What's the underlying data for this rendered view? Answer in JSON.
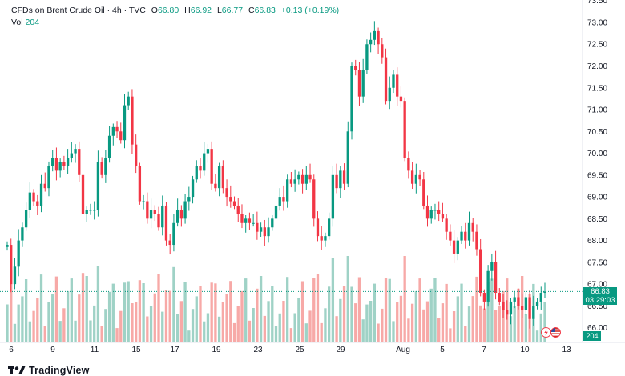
{
  "legend": {
    "title": "CFDs on Brent Crude Oil · 4h · TVC",
    "open_label": "O",
    "open": "66.80",
    "high_label": "H",
    "high": "66.92",
    "low_label": "L",
    "low": "66.77",
    "close_label": "C",
    "close": "66.83",
    "change": "+0.13 (+0.19%)",
    "vol_label": "Vol",
    "vol": "204"
  },
  "last_price": {
    "value": "66.83",
    "countdown": "03:29:03",
    "volume": "204"
  },
  "logo_text": "TradingView",
  "colors": {
    "up": "#089981",
    "down": "#F23645",
    "up_vol": "#9fd2c6",
    "down_vol": "#f7a9a7",
    "grid": "#f0f3fa",
    "axis_text": "#131722"
  },
  "icons": [
    "lightning-icon",
    "flag-us-icon"
  ],
  "chart_data": {
    "type": "candlestick",
    "title": "CFDs on Brent Crude Oil · 4h · TVC",
    "y_axis": {
      "ticks": [
        "66.00",
        "66.50",
        "67.00",
        "67.50",
        "68.00",
        "68.50",
        "69.00",
        "69.50",
        "70.00",
        "70.50",
        "71.00",
        "71.50",
        "72.00",
        "72.50",
        "73.00",
        "73.50"
      ],
      "ylim": [
        65.7,
        73.55
      ]
    },
    "x_axis": {
      "ticks": [
        "6",
        "9",
        "11",
        "15",
        "17",
        "19",
        "23",
        "25",
        "29",
        "Aug",
        "5",
        "7",
        "10",
        "13"
      ]
    },
    "grid": false,
    "candles_seed": [
      [
        67.9,
        "X"
      ],
      [
        67.0,
        "C"
      ],
      [
        67.4,
        "T"
      ],
      [
        68.0,
        "C"
      ],
      [
        68.3,
        "T"
      ],
      [
        68.7,
        "C"
      ],
      [
        69.1,
        "T"
      ],
      [
        68.9,
        "C"
      ],
      [
        68.8,
        "T"
      ],
      [
        69.3,
        "C"
      ],
      [
        69.2,
        "T"
      ],
      [
        69.7,
        "C"
      ],
      [
        69.9,
        "T"
      ],
      [
        69.6,
        "C"
      ],
      [
        69.8,
        "T"
      ],
      [
        69.7,
        "C"
      ],
      [
        69.9,
        "T"
      ],
      [
        70.0,
        "C"
      ],
      [
        70.1,
        "T"
      ],
      [
        69.5,
        "C"
      ],
      [
        68.6,
        "C"
      ],
      [
        68.7,
        "T"
      ],
      [
        68.7,
        "C"
      ],
      [
        68.7,
        "T"
      ],
      [
        69.8,
        "C"
      ],
      [
        69.5,
        "T"
      ],
      [
        69.9,
        "C"
      ],
      [
        70.4,
        "T"
      ],
      [
        70.6,
        "C"
      ],
      [
        70.5,
        "T"
      ],
      [
        70.3,
        "C"
      ],
      [
        71.1,
        "T"
      ],
      [
        71.3,
        "C"
      ],
      [
        70.2,
        "C"
      ],
      [
        69.7,
        "C"
      ],
      [
        68.9,
        "C"
      ],
      [
        68.9,
        "T"
      ],
      [
        68.5,
        "C"
      ],
      [
        68.7,
        "T"
      ],
      [
        68.6,
        "C"
      ],
      [
        68.3,
        "T"
      ],
      [
        68.8,
        "C"
      ],
      [
        68.0,
        "C"
      ],
      [
        67.9,
        "T"
      ],
      [
        68.4,
        "C"
      ],
      [
        68.7,
        "T"
      ],
      [
        68.5,
        "C"
      ],
      [
        68.9,
        "T"
      ],
      [
        69.0,
        "C"
      ],
      [
        69.4,
        "T"
      ],
      [
        69.7,
        "C"
      ],
      [
        69.6,
        "T"
      ],
      [
        70.0,
        "C"
      ],
      [
        70.1,
        "T"
      ],
      [
        69.3,
        "C"
      ],
      [
        69.2,
        "T"
      ],
      [
        69.7,
        "C"
      ],
      [
        69.2,
        "C"
      ],
      [
        69.0,
        "C"
      ],
      [
        68.9,
        "T"
      ],
      [
        68.8,
        "C"
      ],
      [
        68.6,
        "C"
      ],
      [
        68.4,
        "C"
      ],
      [
        68.5,
        "T"
      ],
      [
        68.4,
        "C"
      ],
      [
        68.4,
        "T"
      ],
      [
        68.2,
        "C"
      ],
      [
        68.3,
        "T"
      ],
      [
        68.1,
        "C"
      ],
      [
        68.3,
        "T"
      ],
      [
        68.5,
        "C"
      ],
      [
        68.8,
        "T"
      ],
      [
        69.0,
        "C"
      ],
      [
        68.9,
        "T"
      ],
      [
        69.4,
        "C"
      ],
      [
        69.3,
        "T"
      ],
      [
        69.4,
        "C"
      ],
      [
        69.5,
        "T"
      ],
      [
        69.3,
        "C"
      ],
      [
        69.5,
        "T"
      ],
      [
        69.4,
        "C"
      ],
      [
        68.5,
        "C"
      ],
      [
        68.1,
        "C"
      ],
      [
        68.0,
        "T"
      ],
      [
        68.1,
        "C"
      ],
      [
        68.5,
        "T"
      ],
      [
        69.5,
        "C"
      ],
      [
        69.2,
        "T"
      ],
      [
        69.6,
        "C"
      ],
      [
        69.3,
        "T"
      ],
      [
        70.5,
        "C"
      ],
      [
        72.0,
        "C"
      ],
      [
        71.9,
        "T"
      ],
      [
        71.3,
        "C"
      ],
      [
        71.9,
        "T"
      ],
      [
        72.5,
        "C"
      ],
      [
        72.6,
        "T"
      ],
      [
        72.8,
        "C"
      ],
      [
        72.5,
        "C"
      ],
      [
        72.2,
        "C"
      ],
      [
        71.2,
        "C"
      ],
      [
        71.5,
        "T"
      ],
      [
        71.8,
        "C"
      ],
      [
        71.3,
        "C"
      ],
      [
        71.2,
        "T"
      ],
      [
        69.9,
        "C"
      ],
      [
        69.6,
        "C"
      ],
      [
        69.3,
        "C"
      ],
      [
        69.5,
        "T"
      ],
      [
        69.4,
        "C"
      ],
      [
        68.8,
        "C"
      ],
      [
        68.5,
        "C"
      ],
      [
        68.7,
        "T"
      ],
      [
        68.7,
        "C"
      ],
      [
        68.6,
        "T"
      ],
      [
        68.5,
        "C"
      ],
      [
        68.2,
        "C"
      ],
      [
        68.0,
        "C"
      ],
      [
        67.7,
        "C"
      ],
      [
        68.0,
        "T"
      ],
      [
        68.2,
        "C"
      ],
      [
        68.0,
        "T"
      ],
      [
        68.4,
        "C"
      ],
      [
        68.2,
        "T"
      ],
      [
        67.8,
        "C"
      ],
      [
        66.8,
        "C"
      ],
      [
        66.6,
        "C"
      ],
      [
        67.3,
        "T"
      ],
      [
        67.5,
        "C"
      ],
      [
        66.8,
        "C"
      ],
      [
        66.6,
        "T"
      ],
      [
        66.4,
        "C"
      ],
      [
        66.3,
        "C"
      ],
      [
        66.6,
        "T"
      ],
      [
        66.7,
        "C"
      ],
      [
        66.5,
        "C"
      ],
      [
        66.4,
        "T"
      ],
      [
        66.7,
        "C"
      ],
      [
        66.2,
        "C"
      ],
      [
        66.5,
        "T"
      ],
      [
        66.6,
        "C"
      ],
      [
        66.8,
        "T"
      ],
      [
        66.83,
        "T"
      ]
    ],
    "volume_scale_max": 1.0
  }
}
